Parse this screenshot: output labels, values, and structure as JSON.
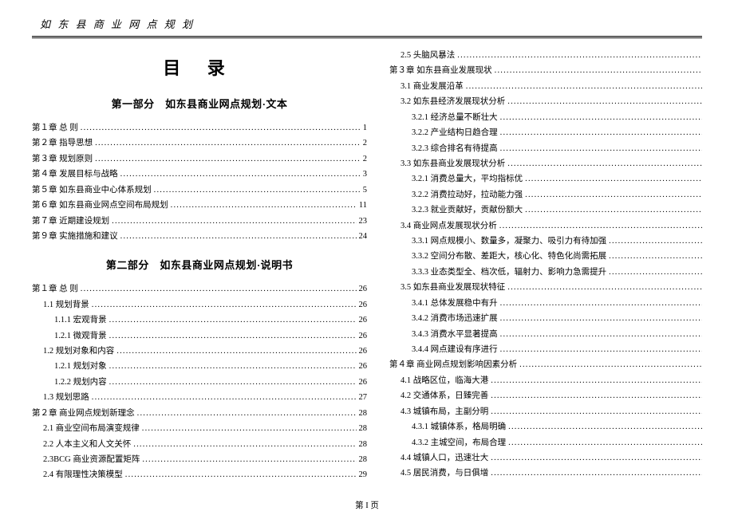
{
  "running_head": "如 东 县 商 业 网 点 规 划",
  "title_main": "目 录",
  "part1_heading": "第一部分　如东县商业网点规划·文本",
  "part2_heading": "第二部分　如东县商业网点规划·说明书",
  "page_number_label": "第 I 页",
  "left": {
    "part1": [
      {
        "label": "第１章 总 则",
        "page": "1",
        "indent": 0
      },
      {
        "label": "第２章 指导思想",
        "page": "2",
        "indent": 0
      },
      {
        "label": "第３章 规划原则",
        "page": "2",
        "indent": 0
      },
      {
        "label": "第４章 发展目标与战略",
        "page": "3",
        "indent": 0
      },
      {
        "label": "第５章 如东县商业中心体系规划",
        "page": "5",
        "indent": 0
      },
      {
        "label": "第６章 如东县商业网点空间布局规划",
        "page": "11",
        "indent": 0
      },
      {
        "label": "第７章 近期建设规划",
        "page": "23",
        "indent": 0
      },
      {
        "label": "第９章 实施措施和建议",
        "page": "24",
        "indent": 0
      }
    ],
    "part2": [
      {
        "label": "第１章 总 则",
        "page": "26",
        "indent": 0
      },
      {
        "label": "1.1 规划背景",
        "page": "26",
        "indent": 1
      },
      {
        "label": "1.1.1 宏观背景",
        "page": "26",
        "indent": 2
      },
      {
        "label": "1.2.1 微观背景",
        "page": "26",
        "indent": 2
      },
      {
        "label": "1.2 规划对象和内容",
        "page": "26",
        "indent": 1
      },
      {
        "label": "1.2.1 规划对象",
        "page": "26",
        "indent": 2
      },
      {
        "label": "1.2.2 规划内容",
        "page": "26",
        "indent": 2
      },
      {
        "label": "1.3 规划思路",
        "page": "27",
        "indent": 1
      },
      {
        "label": "第２章 商业网点规划新理念",
        "page": "28",
        "indent": 0
      },
      {
        "label": "2.1 商业空间布局演变规律",
        "page": "28",
        "indent": 1
      },
      {
        "label": "2.2 人本主义和人文关怀",
        "page": "28",
        "indent": 1
      },
      {
        "label": "2.3BCG 商业资源配置矩阵",
        "page": "28",
        "indent": 1
      },
      {
        "label": "2.4 有限理性决策模型",
        "page": "29",
        "indent": 1
      }
    ]
  },
  "right": [
    {
      "label": "2.5 头脑风暴法",
      "page": "30",
      "indent": 1
    },
    {
      "label": "第３章 如东县商业发展现状",
      "page": "32",
      "indent": 0
    },
    {
      "label": "3.1 商业发展沿革",
      "page": "32",
      "indent": 1
    },
    {
      "label": "3.2 如东县经济发展现状分析",
      "page": "32",
      "indent": 1
    },
    {
      "label": "3.2.1 经济总量不断壮大",
      "page": "32",
      "indent": 2
    },
    {
      "label": "3.2.2 产业结构日趋合理",
      "page": "32",
      "indent": 2
    },
    {
      "label": "3.2.3 综合排名有待提高",
      "page": "33",
      "indent": 2
    },
    {
      "label": "3.3 如东县商业发展现状分析",
      "page": "33",
      "indent": 1
    },
    {
      "label": "3.2.1 消费总量大，平均指标优",
      "page": "33",
      "indent": 2
    },
    {
      "label": "3.2.2 消费拉动好，拉动能力强",
      "page": "33",
      "indent": 2
    },
    {
      "label": "3.2.3 就业贡献好，贡献份额大",
      "page": "34",
      "indent": 2
    },
    {
      "label": "3.4 商业网点发展现状分析",
      "page": "34",
      "indent": 1
    },
    {
      "label": "3.3.1 网点规模小、数量多，凝聚力、吸引力有待加强",
      "page": "34",
      "indent": 2
    },
    {
      "label": "3.3.2 空间分布散、差距大，核心化、特色化尚需拓展",
      "page": "35",
      "indent": 2
    },
    {
      "label": "3.3.3 业态类型全、档次低，辐射力、影响力急需提升",
      "page": "36",
      "indent": 2
    },
    {
      "label": "3.5 如东县商业发展现状特征",
      "page": "36",
      "indent": 1
    },
    {
      "label": "3.4.1 总体发展稳中有升",
      "page": "36",
      "indent": 2
    },
    {
      "label": "3.4.2 消费市场迅速扩展",
      "page": "37",
      "indent": 2
    },
    {
      "label": "3.4.3 消费水平显著提高",
      "page": "37",
      "indent": 2
    },
    {
      "label": "3.4.4 网点建设有序进行",
      "page": "37",
      "indent": 2
    },
    {
      "label": "第４章 商业网点规划影响因素分析",
      "page": "39",
      "indent": 0
    },
    {
      "label": "4.1 战略区位，临海大港",
      "page": "39",
      "indent": 1
    },
    {
      "label": "4.2 交通体系，日臻完善",
      "page": "39",
      "indent": 1
    },
    {
      "label": "4.3 城镇布局，主副分明",
      "page": "40",
      "indent": 1
    },
    {
      "label": "4.3.1 城镇体系，格局明确",
      "page": "40",
      "indent": 2
    },
    {
      "label": "4.3.2 主城空间，布局合理",
      "page": "40",
      "indent": 2
    },
    {
      "label": "4.4 城镇人口，迅速壮大",
      "page": "40",
      "indent": 1
    },
    {
      "label": "4.5 居民消费，与日俱增",
      "page": "41",
      "indent": 1
    }
  ]
}
